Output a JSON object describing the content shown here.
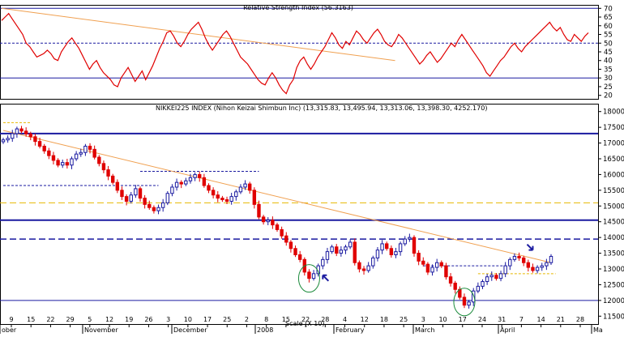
{
  "chart_data": [
    {
      "type": "line",
      "title": "Relative Strength Index (56.3163)",
      "ylim": [
        18,
        72
      ],
      "yticks": [
        20,
        25,
        30,
        35,
        40,
        45,
        50,
        55,
        60,
        65,
        70
      ],
      "hlines": [
        {
          "value": 70,
          "color": "#1a1aa0",
          "style": "solid"
        },
        {
          "value": 50,
          "color": "#1a1aa0",
          "style": "dashed"
        },
        {
          "value": 30,
          "color": "#1a1aa0",
          "style": "solid"
        }
      ],
      "trendline": {
        "start": {
          "index": 0,
          "y": 70
        },
        "end": {
          "index": 112,
          "y": 40
        },
        "color": "#f0a050"
      },
      "line_color": "#e00000",
      "values": [
        63,
        65,
        67,
        64,
        61,
        58,
        55,
        50,
        48,
        45,
        42,
        43,
        44,
        46,
        44,
        41,
        40,
        45,
        48,
        51,
        53,
        50,
        47,
        43,
        39,
        35,
        38,
        40,
        36,
        33,
        31,
        29,
        26,
        25,
        30,
        33,
        36,
        32,
        28,
        31,
        34,
        29,
        33,
        37,
        42,
        47,
        51,
        56,
        57,
        54,
        50,
        48,
        51,
        55,
        58,
        60,
        62,
        58,
        53,
        49,
        46,
        49,
        52,
        55,
        57,
        54,
        50,
        46,
        42,
        40,
        38,
        35,
        32,
        29,
        27,
        26,
        30,
        33,
        30,
        26,
        23,
        21,
        26,
        29,
        36,
        40,
        42,
        38,
        35,
        38,
        42,
        45,
        48,
        52,
        56,
        53,
        49,
        47,
        51,
        49,
        53,
        57,
        55,
        52,
        50,
        53,
        56,
        58,
        55,
        51,
        49,
        48,
        51,
        55,
        53,
        50,
        47,
        44,
        41,
        38,
        40,
        43,
        45,
        42,
        39,
        41,
        44,
        47,
        50,
        48,
        52,
        55,
        52,
        49,
        46,
        43,
        40,
        37,
        33,
        31,
        34,
        37,
        40,
        42,
        45,
        48,
        50,
        47,
        45,
        48,
        50,
        52,
        54,
        56,
        58,
        60,
        62,
        59,
        57,
        59,
        55,
        52,
        51,
        55,
        53,
        51,
        54,
        56
      ],
      "ytick_labels": [
        "20",
        "25",
        "30",
        "35",
        "40",
        "45",
        "50",
        "55",
        "60",
        "65",
        "70"
      ]
    },
    {
      "type": "candlestick",
      "title": "NIKKEI225 INDEX (Nihon Keizai Shimbun Inc) (13,315.83, 13,495.94, 13,313.06, 13,398.30, 4252.170)",
      "ylim": [
        11250,
        18250
      ],
      "yticks": [
        11500,
        12000,
        12500,
        13000,
        13500,
        14000,
        14500,
        15000,
        15500,
        16000,
        16500,
        17000,
        17500,
        18000
      ],
      "ytick_labels": [
        "11500",
        "12000",
        "12500",
        "13000",
        "13500",
        "14000",
        "14500",
        "15000",
        "15500",
        "16000",
        "16500",
        "17000",
        "17500",
        "18000"
      ],
      "close": [
        17100,
        17150,
        17300,
        17450,
        17380,
        17290,
        17200,
        17050,
        16900,
        16750,
        16600,
        16450,
        16300,
        16380,
        16300,
        16500,
        16650,
        16700,
        16900,
        16800,
        16550,
        16350,
        16150,
        15950,
        15750,
        15500,
        15300,
        15150,
        15350,
        15550,
        15250,
        15050,
        14950,
        14850,
        14950,
        15100,
        15400,
        15600,
        15750,
        15700,
        15800,
        15900,
        16000,
        15900,
        15650,
        15500,
        15350,
        15250,
        15200,
        15150,
        15300,
        15450,
        15600,
        15700,
        15500,
        15050,
        14650,
        14500,
        14550,
        14400,
        14250,
        14050,
        13850,
        13650,
        13450,
        13300,
        12900,
        12700,
        12850,
        13100,
        13300,
        13550,
        13700,
        13500,
        13600,
        13700,
        13850,
        13200,
        13000,
        12950,
        13100,
        13350,
        13600,
        13800,
        13650,
        13450,
        13550,
        13800,
        13950,
        14000,
        13500,
        13250,
        13150,
        12900,
        13050,
        13200,
        13100,
        12750,
        12550,
        12350,
        12100,
        11850,
        11950,
        12300,
        12450,
        12600,
        12750,
        12800,
        12700,
        12850,
        13100,
        13300,
        13400,
        13350,
        13200,
        13050,
        12950,
        13050,
        13100,
        13200,
        13400
      ],
      "trendline": {
        "start": {
          "index": 0,
          "y": 17400
        },
        "end": {
          "index": 120,
          "y": 13200
        },
        "color": "#f0a050"
      },
      "hlines": [
        {
          "value": 17300,
          "color": "#1a1aa0",
          "style": "solid",
          "width": 2
        },
        {
          "value": 14550,
          "color": "#1a1aa0",
          "style": "solid",
          "width": 2
        },
        {
          "value": 12000,
          "color": "#1a1aa0",
          "style": "solid",
          "width": 1
        },
        {
          "value": 15100,
          "color": "#e8b800",
          "style": "dashed",
          "width": 1
        },
        {
          "value": 13950,
          "color": "#1a1aa0",
          "style": "dashed",
          "width": 1.5
        }
      ],
      "segments": [
        {
          "i0": 0,
          "i1": 6,
          "value": 17650,
          "color": "#e8b800",
          "style": "dashed"
        },
        {
          "i0": 30,
          "i1": 56,
          "value": 16100,
          "color": "#1a1aa0",
          "style": "dashed"
        },
        {
          "i0": 0,
          "i1": 34,
          "value": 15650,
          "color": "#1a1aa0",
          "style": "dashed"
        },
        {
          "i0": 104,
          "i1": 121,
          "value": 12850,
          "color": "#e8b800",
          "style": "dashed"
        },
        {
          "i0": 92,
          "i1": 110,
          "value": 13100,
          "color": "#1a1aa0",
          "style": "dashed"
        }
      ],
      "circles": [
        {
          "index": 67,
          "value": 12700
        },
        {
          "index": 101,
          "value": 11950
        }
      ],
      "arrows": [
        {
          "index": 70,
          "value": 12800,
          "dir": "up-left"
        },
        {
          "index": 116,
          "value": 13600,
          "dir": "down-right"
        }
      ],
      "x_tick_labels": [
        "9",
        "15",
        "22",
        "29",
        "5",
        "12",
        "19",
        "26",
        "3",
        "10",
        "17",
        "25",
        "2",
        "8",
        "15",
        "22",
        "28",
        "4",
        "12",
        "18",
        "25",
        "3",
        "10",
        "17",
        "24",
        "31",
        "7",
        "14",
        "21",
        "28"
      ],
      "month_labels": [
        "ober",
        "November",
        "December",
        "2008",
        "February",
        "March",
        "April",
        "Ma"
      ],
      "x_label_overlay": "Scale (X 10)"
    }
  ],
  "palette": {
    "up": "#1a1aa0",
    "down": "#e00000",
    "grid": "#000000"
  }
}
